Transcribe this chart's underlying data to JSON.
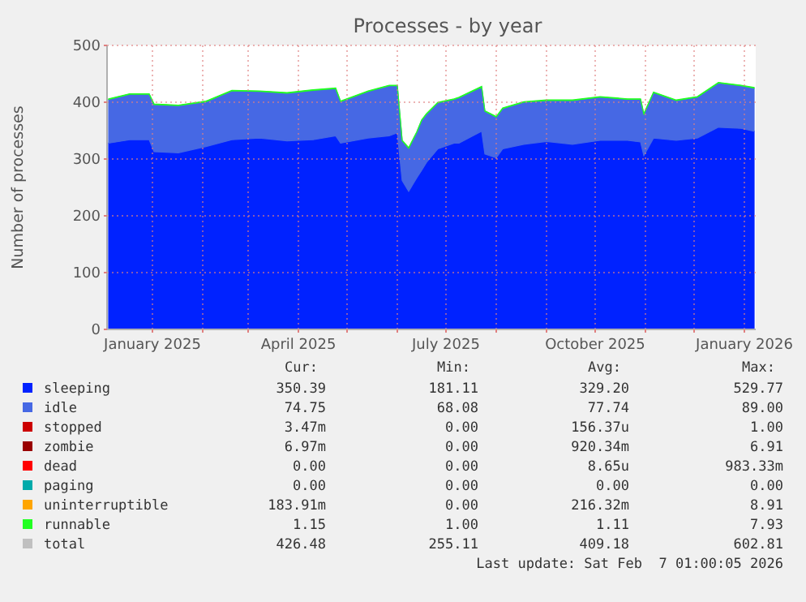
{
  "chart_data": {
    "type": "area",
    "stacked": true,
    "title": "Processes - by year",
    "ylabel": "Number of processes",
    "grid": true,
    "legend": "bottom",
    "x": [
      "2024-12-05",
      "2024-12-18",
      "2024-12-30",
      "2025-01-02",
      "2025-01-17",
      "2025-02-03",
      "2025-02-19",
      "2025-03-08",
      "2025-03-25",
      "2025-04-10",
      "2025-04-24",
      "2025-04-27",
      "2025-05-14",
      "2025-05-27",
      "2025-06-01",
      "2025-06-04",
      "2025-06-08",
      "2025-06-13",
      "2025-06-16",
      "2025-06-19",
      "2025-06-26",
      "2025-07-06",
      "2025-07-09",
      "2025-07-23",
      "2025-07-25",
      "2025-08-01",
      "2025-08-05",
      "2025-08-18",
      "2025-09-01",
      "2025-09-17",
      "2025-10-04",
      "2025-10-21",
      "2025-10-29",
      "2025-10-31",
      "2025-11-06",
      "2025-11-20",
      "2025-12-03",
      "2025-12-16",
      "2025-12-30",
      "2026-01-07"
    ],
    "xlim": [
      "2024-12-04",
      "2026-01-08"
    ],
    "xticks": [
      {
        "value": "2025-01-01",
        "label": "January 2025"
      },
      {
        "value": "2025-02-01",
        "label": null
      },
      {
        "value": "2025-03-01",
        "label": null
      },
      {
        "value": "2025-04-01",
        "label": "April 2025"
      },
      {
        "value": "2025-05-01",
        "label": null
      },
      {
        "value": "2025-06-01",
        "label": null
      },
      {
        "value": "2025-07-01",
        "label": "July 2025"
      },
      {
        "value": "2025-08-01",
        "label": null
      },
      {
        "value": "2025-09-01",
        "label": null
      },
      {
        "value": "2025-10-01",
        "label": "October 2025"
      },
      {
        "value": "2025-11-01",
        "label": null
      },
      {
        "value": "2025-12-01",
        "label": null
      },
      {
        "value": "2026-01-01",
        "label": "January 2026"
      }
    ],
    "ylim": [
      0,
      500
    ],
    "yticks": [
      0,
      100,
      200,
      300,
      400,
      500
    ],
    "series": [
      {
        "name": "sleeping",
        "color": "#0022ff",
        "values": [
          328,
          334,
          334,
          313,
          311,
          322,
          334,
          337,
          332,
          334,
          341,
          328,
          337,
          341,
          346,
          262,
          243,
          267,
          280,
          294,
          318,
          328,
          328,
          349,
          309,
          302,
          318,
          326,
          331,
          326,
          333,
          333,
          330,
          306,
          337,
          333,
          337,
          356,
          354,
          349
        ]
      },
      {
        "name": "idle",
        "color": "#4668e4",
        "values": [
          77,
          80,
          80,
          83,
          83,
          79,
          86,
          82,
          84,
          87,
          83,
          73,
          82,
          88,
          83,
          70,
          76,
          80,
          88,
          85,
          81,
          77,
          80,
          78,
          75,
          72,
          71,
          74,
          72,
          77,
          76,
          72,
          75,
          73,
          80,
          70,
          72,
          78,
          75,
          76
        ]
      },
      {
        "name": "stopped",
        "color": "#cc0000",
        "values": [
          null,
          null,
          null,
          null,
          null,
          null,
          null,
          null,
          null,
          null,
          null,
          null,
          null,
          null,
          null,
          null,
          null,
          null,
          null,
          null,
          null,
          null,
          null,
          null,
          null,
          null,
          null,
          null,
          null,
          null,
          null,
          null,
          null,
          null,
          null,
          null,
          null,
          null,
          null,
          null
        ]
      },
      {
        "name": "zombie",
        "color": "#990000",
        "values": [
          null,
          null,
          null,
          null,
          null,
          null,
          null,
          null,
          null,
          null,
          null,
          null,
          null,
          null,
          null,
          null,
          null,
          null,
          null,
          null,
          null,
          null,
          null,
          null,
          null,
          null,
          null,
          null,
          null,
          null,
          null,
          null,
          null,
          null,
          null,
          null,
          null,
          null,
          null,
          null
        ]
      },
      {
        "name": "dead",
        "color": "#ff0000",
        "values": [
          null,
          null,
          null,
          null,
          null,
          null,
          null,
          null,
          null,
          null,
          null,
          null,
          null,
          null,
          null,
          null,
          null,
          null,
          null,
          null,
          null,
          null,
          null,
          null,
          null,
          null,
          null,
          null,
          null,
          null,
          null,
          null,
          null,
          null,
          null,
          null,
          null,
          null,
          null,
          null
        ]
      },
      {
        "name": "paging",
        "color": "#00aaaa",
        "values": [
          null,
          null,
          null,
          null,
          null,
          null,
          null,
          null,
          null,
          null,
          null,
          null,
          null,
          null,
          null,
          null,
          null,
          null,
          null,
          null,
          null,
          null,
          null,
          null,
          null,
          null,
          null,
          null,
          null,
          null,
          null,
          null,
          null,
          null,
          null,
          null,
          null,
          null,
          null,
          null
        ]
      },
      {
        "name": "uninterruptible",
        "color": "#ffa500",
        "values": [
          null,
          null,
          null,
          null,
          null,
          null,
          null,
          null,
          null,
          null,
          null,
          null,
          null,
          null,
          null,
          null,
          null,
          null,
          null,
          null,
          null,
          null,
          null,
          null,
          null,
          null,
          null,
          null,
          null,
          null,
          null,
          null,
          null,
          null,
          null,
          null,
          null,
          null,
          null,
          null
        ]
      },
      {
        "name": "runnable",
        "color": "#22ff22",
        "values": [
          1,
          1,
          1,
          1,
          1,
          1,
          1,
          1,
          1,
          1,
          1,
          1,
          1,
          1,
          1,
          1,
          1,
          1,
          1,
          1,
          1,
          1,
          1,
          1,
          1,
          1,
          1,
          1,
          1,
          1,
          1,
          1,
          1,
          1,
          1,
          1,
          1,
          1,
          1,
          1
        ]
      },
      {
        "name": "total",
        "color": "#c0c0c0",
        "values": [
          null,
          null,
          null,
          null,
          null,
          null,
          null,
          null,
          null,
          null,
          null,
          null,
          null,
          null,
          null,
          null,
          null,
          null,
          null,
          null,
          null,
          null,
          null,
          null,
          null,
          null,
          null,
          null,
          null,
          null,
          null,
          null,
          null,
          null,
          null,
          null,
          null,
          null,
          null,
          null
        ]
      }
    ],
    "annotations": [
      "Cur:",
      "Min:",
      "Avg:",
      "Max:",
      "350.39",
      "181.11",
      "329.20",
      "529.77",
      "74.75",
      "68.08",
      "77.74",
      "89.00",
      "3.47m",
      "0.00",
      "156.37u",
      "1.00",
      "6.97m",
      "0.00",
      "920.34m",
      "6.91",
      "0.00",
      "0.00",
      "8.65u",
      "983.33m",
      "0.00",
      "0.00",
      "0.00",
      "0.00",
      "183.91m",
      "0.00",
      "216.32m",
      "8.91",
      "1.15",
      "1.00",
      "1.11",
      "7.93",
      "426.48",
      "255.11",
      "409.18",
      "602.81",
      "Last update: Sat Feb  7 01:00:05 2026"
    ]
  }
}
